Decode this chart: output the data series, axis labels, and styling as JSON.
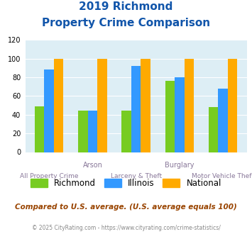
{
  "title_line1": "2019 Richmond",
  "title_line2": "Property Crime Comparison",
  "categories": [
    "All Property Crime",
    "Arson",
    "Larceny & Theft",
    "Burglary",
    "Motor Vehicle Theft"
  ],
  "top_labels": [
    "",
    "Arson",
    "",
    "Burglary",
    ""
  ],
  "bottom_labels": [
    "All Property Crime",
    "",
    "Larceny & Theft",
    "",
    "Motor Vehicle Theft"
  ],
  "richmond": [
    49,
    44,
    44,
    76,
    48
  ],
  "illinois": [
    88,
    44,
    92,
    80,
    68
  ],
  "national": [
    100,
    100,
    100,
    100,
    100
  ],
  "richmond_color": "#77cc22",
  "illinois_color": "#3399ff",
  "national_color": "#ffaa00",
  "ylim": [
    0,
    120
  ],
  "yticks": [
    0,
    20,
    40,
    60,
    80,
    100,
    120
  ],
  "background_color": "#ddeef5",
  "legend_labels": [
    "Richmond",
    "Illinois",
    "National"
  ],
  "note": "Compared to U.S. average. (U.S. average equals 100)",
  "footer": "© 2025 CityRating.com - https://www.cityrating.com/crime-statistics/",
  "title_color": "#1155aa",
  "note_color": "#994400",
  "footer_color": "#888888",
  "label_color": "#887799",
  "bar_width": 0.22
}
